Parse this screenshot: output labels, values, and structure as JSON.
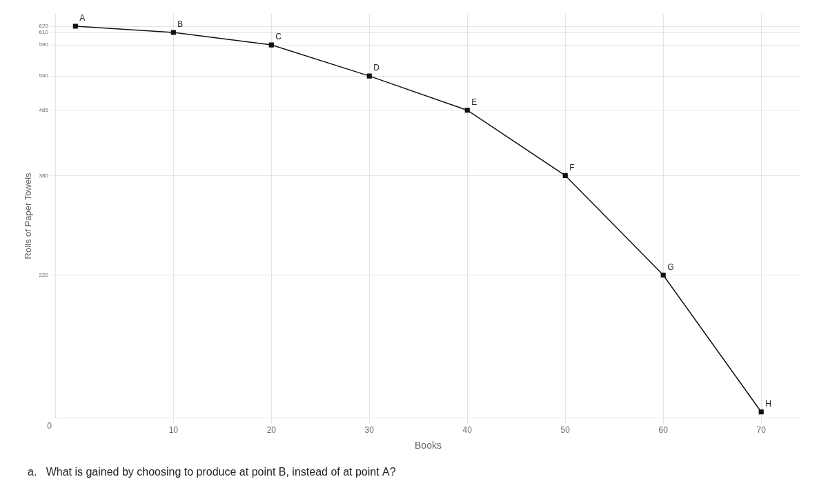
{
  "chart_data": {
    "type": "line",
    "x": [
      0,
      10,
      20,
      30,
      40,
      50,
      60,
      70
    ],
    "values": [
      620,
      610,
      590,
      540,
      485,
      380,
      220,
      0
    ],
    "point_labels": [
      "A",
      "B",
      "C",
      "D",
      "E",
      "F",
      "G",
      "H"
    ],
    "color": "#111111",
    "marker": "square",
    "line_style": "solid",
    "xlabel": "Books",
    "ylabel": "Rolls of Paper Towels",
    "xlim": [
      -2,
      74
    ],
    "ylim": [
      -10,
      640
    ],
    "xticks": [
      10,
      20,
      30,
      40,
      50,
      60,
      70
    ],
    "yticks": [
      220,
      380,
      485,
      540,
      590,
      610,
      620
    ],
    "grid": true,
    "legend": false,
    "origin_label": "0",
    "annotation": "a.   What is gained by choosing to produce at point B, instead of at point A?"
  }
}
